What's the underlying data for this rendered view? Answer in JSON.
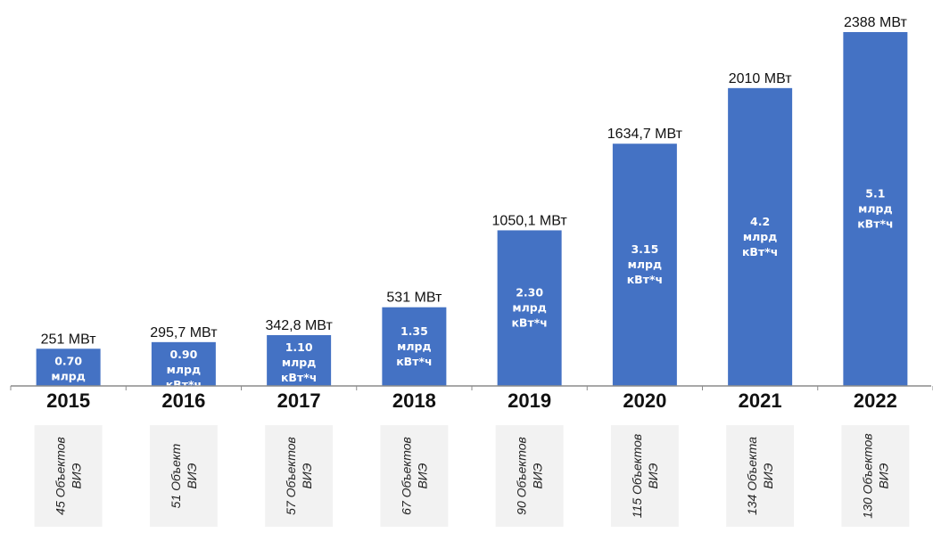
{
  "chart_data": {
    "type": "bar",
    "categories": [
      "2015",
      "2016",
      "2017",
      "2018",
      "2019",
      "2020",
      "2021",
      "2022"
    ],
    "values": [
      251,
      295.7,
      342.8,
      531,
      1050.1,
      1634.7,
      2010,
      2388
    ],
    "value_labels": [
      "251 МВт",
      "295,7 МВт",
      "342,8 МВт",
      "531 МВт",
      "1050,1 МВт",
      "1634,7 МВт",
      "2010 МВт",
      "2388 МВт"
    ],
    "generation": [
      "0.70",
      "0.90",
      "1.10",
      "1.35",
      "2.30",
      "3.15",
      "4.2",
      "5.1"
    ],
    "generation_unit_lines": [
      "млрд",
      "кВт*ч"
    ],
    "objects_line1": [
      "45 Объектов",
      "51 Объект",
      "57 Объектов",
      "67 Объектов",
      "90 Объектов",
      "115 Объектов",
      "134 Объекта",
      "130 Объектов"
    ],
    "objects_line2": [
      "ВИЭ",
      "ВИЭ",
      "ВИЭ",
      "ВИЭ",
      "ВИЭ",
      "ВИЭ",
      "ВИЭ",
      "ВИЭ"
    ],
    "ylim": [
      0,
      2388
    ],
    "grid": false,
    "title": "",
    "xlabel": "",
    "ylabel": ""
  },
  "colors": {
    "bar": "#4472C4",
    "axis": "#8C8C8C",
    "objects_box": "#F2F2F2",
    "bar_text": "#FFFFFF"
  }
}
